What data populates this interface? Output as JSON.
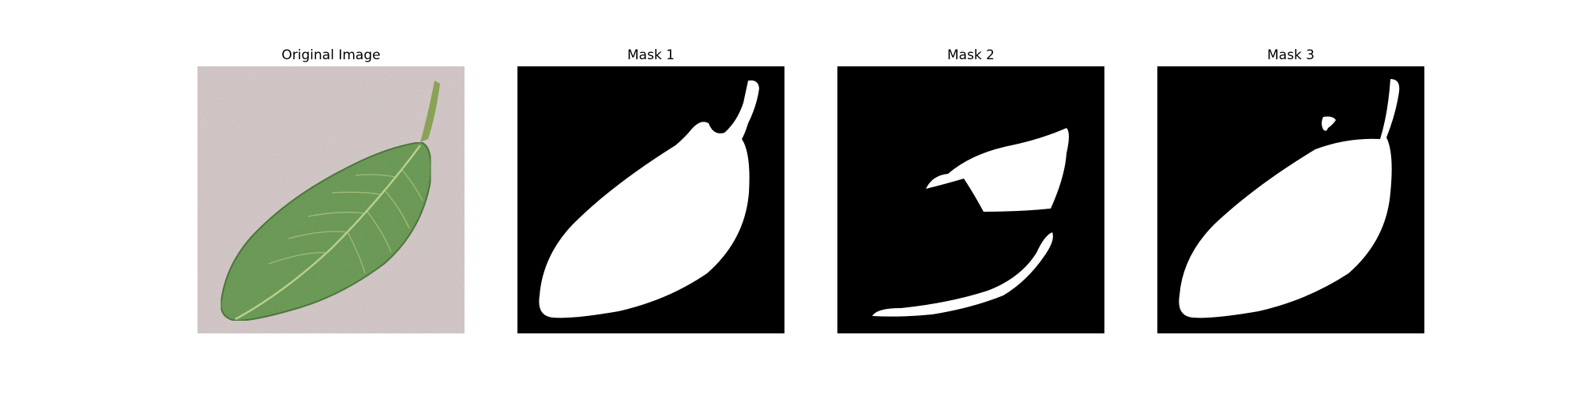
{
  "panels": [
    {
      "title": "Original Image",
      "content": "leaf-photo"
    },
    {
      "title": "Mask 1",
      "content": "binary-mask"
    },
    {
      "title": "Mask 2",
      "content": "binary-mask"
    },
    {
      "title": "Mask 3",
      "content": "binary-mask"
    }
  ],
  "colors": {
    "background_texture": "#d8cccc",
    "leaf": "#6f9e5a",
    "leaf_vein": "#b8d08a",
    "mask_background": "#000000",
    "mask_foreground": "#ffffff"
  }
}
